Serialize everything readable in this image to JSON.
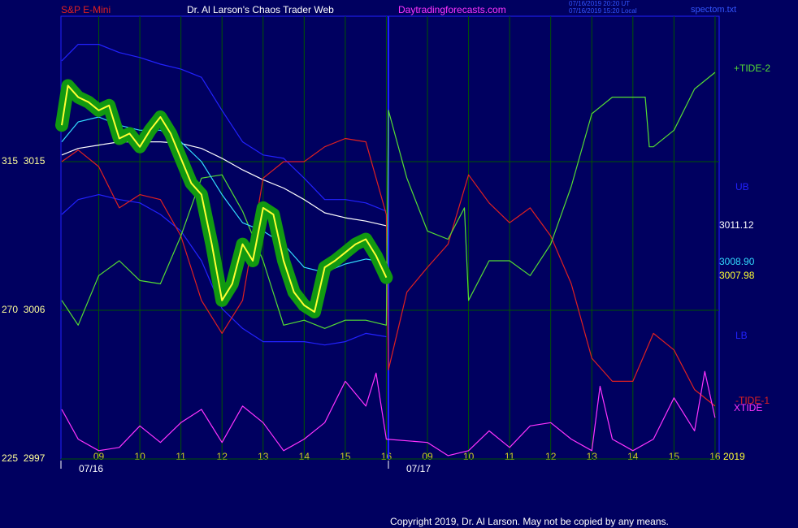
{
  "chart_data": {
    "type": "line",
    "header_left": "S&P E-Mini",
    "title": "Dr. Al Larson's Chaos Trader Web",
    "website": "Daytradingforecasts.com",
    "timestamps": [
      "07/16/2019 20:20 UT",
      "07/16/2019 15:20 Local"
    ],
    "file": "spectom.txt",
    "copyright": "Copyright 2019, Dr. Al Larson. May not be copied by any means.",
    "year": "2019",
    "xlim": [
      8.08,
      24.1
    ],
    "xticks": [
      {
        "value": 9,
        "label": "09"
      },
      10,
      11,
      12,
      13,
      14,
      15,
      16,
      {
        "value": 17,
        "label": "09"
      },
      {
        "value": 18,
        "label": "10"
      },
      {
        "value": 19,
        "label": "11"
      },
      {
        "value": 20,
        "label": "12"
      },
      {
        "value": 21,
        "label": "13"
      },
      {
        "value": 22,
        "label": "14"
      },
      {
        "value": 23,
        "label": "15"
      },
      {
        "value": 24,
        "label": "16"
      }
    ],
    "date_labels": [
      {
        "value": 8.08,
        "label": "07/16"
      },
      {
        "value": 16.05,
        "label": "07/17"
      }
    ],
    "day_separator": 16.05,
    "ylim": [
      2997,
      3023.8
    ],
    "yticks": [
      {
        "value": 2997,
        "label": "225  2997"
      },
      {
        "value": 3006,
        "label": "270  3006"
      },
      {
        "value": 3015,
        "label": "315  3015"
      }
    ],
    "grid": true,
    "series": [
      {
        "name": "UB",
        "color": "#2222ff",
        "x": [
          8.1,
          8.5,
          9,
          9.5,
          10,
          10.5,
          11,
          11.5,
          12,
          12.5,
          13,
          13.5,
          14,
          14.5,
          15,
          15.5,
          16
        ],
        "values": [
          3021.1,
          3022.1,
          3022.1,
          3021.6,
          3021.3,
          3020.9,
          3020.6,
          3020.1,
          3018.1,
          3016.2,
          3015.4,
          3015.2,
          3014.0,
          3012.7,
          3012.7,
          3012.5,
          3012.0
        ]
      },
      {
        "name": "LB",
        "color": "#2222ff",
        "x": [
          8.1,
          8.5,
          9,
          9.5,
          10,
          10.5,
          11,
          11.5,
          12,
          12.5,
          13,
          13.5,
          14,
          14.5,
          15,
          15.5,
          16
        ],
        "values": [
          3011.8,
          3012.7,
          3013.0,
          3012.7,
          3012.5,
          3011.8,
          3010.8,
          3009.0,
          3006.1,
          3004.9,
          3004.1,
          3004.1,
          3004.1,
          3003.9,
          3004.1,
          3004.6,
          3004.4
        ]
      },
      {
        "color": "#ffffff",
        "end_label": "3011.12",
        "x": [
          8.1,
          8.5,
          9,
          9.5,
          10,
          10.5,
          11,
          11.5,
          12,
          12.5,
          13,
          13.5,
          14,
          14.5,
          15,
          15.5,
          16
        ],
        "values": [
          3015.4,
          3015.8,
          3016.0,
          3016.2,
          3016.2,
          3016.2,
          3016.1,
          3015.8,
          3015.2,
          3014.5,
          3013.9,
          3013.4,
          3012.7,
          3011.9,
          3011.6,
          3011.4,
          3011.12
        ]
      },
      {
        "name": "-TIDE-1",
        "color": "#e02020",
        "x": [
          8.1,
          8.5,
          9,
          9.5,
          10,
          10.5,
          11,
          11.5,
          12,
          12.5,
          13,
          13.5,
          14,
          14.5,
          15,
          15.5,
          16,
          16.05,
          16.5,
          17,
          17.5,
          18,
          18.5,
          19,
          19.5,
          20,
          20.5,
          21,
          21.5,
          22,
          22.5,
          23,
          23.5,
          24
        ],
        "values": [
          3015.0,
          3015.7,
          3014.7,
          3012.2,
          3013.0,
          3012.7,
          3010.5,
          3006.6,
          3004.6,
          3006.6,
          3014.0,
          3015.0,
          3015.0,
          3015.9,
          3016.4,
          3016.2,
          3011.8,
          3002.4,
          3007.1,
          3008.6,
          3010.0,
          3014.2,
          3012.5,
          3011.3,
          3012.2,
          3010.5,
          3007.6,
          3003.1,
          3001.7,
          3001.7,
          3004.6,
          3003.6,
          3001.2,
          3000.2
        ]
      },
      {
        "name": "+TIDE-2",
        "color": "#55dd33",
        "x": [
          8.1,
          8.5,
          9,
          9.5,
          10,
          10.5,
          11,
          11.5,
          12,
          12.5,
          13,
          13.5,
          14,
          14.5,
          15,
          15.5,
          16,
          16.05,
          16.5,
          17,
          17.5,
          17.9,
          18,
          18.5,
          19,
          19.5,
          20,
          20.5,
          21,
          21.5,
          22,
          22.3,
          22.4,
          22.5,
          23,
          23.5,
          24
        ],
        "values": [
          3006.6,
          3005.1,
          3008.1,
          3009.0,
          3007.8,
          3007.6,
          3010.5,
          3014.0,
          3014.2,
          3012.0,
          3009.0,
          3005.1,
          3005.4,
          3004.9,
          3005.4,
          3005.4,
          3005.1,
          3018.1,
          3014.0,
          3010.8,
          3010.3,
          3012.2,
          3006.6,
          3009.0,
          3009.0,
          3008.1,
          3010.0,
          3013.5,
          3017.9,
          3018.9,
          3018.9,
          3018.9,
          3015.9,
          3015.9,
          3016.9,
          3019.4,
          3020.4
        ]
      },
      {
        "name": "XTIDE",
        "color": "#ff33ff",
        "x": [
          8.1,
          8.5,
          9,
          9.5,
          10,
          10.5,
          11,
          11.5,
          12,
          12.5,
          13,
          13.5,
          14,
          14.5,
          15,
          15.5,
          15.75,
          16,
          17,
          17.5,
          18,
          18.5,
          19,
          19.5,
          20,
          20.5,
          21,
          21.2,
          21.5,
          22,
          22.5,
          23,
          23.5,
          23.75,
          24
        ],
        "values": [
          3000.0,
          2998.2,
          2997.5,
          2997.7,
          2999.0,
          2998.0,
          2999.2,
          3000.0,
          2998.0,
          3000.2,
          2999.2,
          2997.5,
          2998.2,
          2999.2,
          3001.7,
          3000.2,
          3002.2,
          2998.2,
          2998.0,
          2997.2,
          2997.5,
          2998.7,
          2997.7,
          2999.0,
          2999.2,
          2998.2,
          2997.5,
          3001.4,
          2998.2,
          2997.5,
          2998.2,
          3000.7,
          2998.7,
          3002.3,
          2999.5
        ]
      },
      {
        "color": "#33ddff",
        "end_label": "3008.90",
        "x": [
          8.1,
          8.5,
          9,
          9.5,
          10,
          10.5,
          11,
          11.5,
          12,
          12.5,
          13,
          13.5,
          14,
          14.5,
          15,
          15.5,
          16
        ],
        "values": [
          3016.2,
          3017.4,
          3017.7,
          3017.2,
          3016.9,
          3016.9,
          3016.2,
          3015.0,
          3013.0,
          3011.3,
          3010.8,
          3010.0,
          3008.6,
          3008.3,
          3008.8,
          3009.1,
          3008.9
        ]
      },
      {
        "color": "#ffff33",
        "end_label": "3007.98",
        "glow": "#119911",
        "x": [
          8.1,
          8.25,
          8.5,
          8.75,
          9,
          9.25,
          9.5,
          9.75,
          10,
          10.25,
          10.5,
          10.75,
          11,
          11.25,
          11.5,
          11.75,
          12,
          12.25,
          12.5,
          12.75,
          13,
          13.25,
          13.5,
          13.75,
          14,
          14.25,
          14.5,
          14.75,
          15,
          15.25,
          15.5,
          15.75,
          16
        ],
        "values": [
          3017.2,
          3019.6,
          3018.9,
          3018.6,
          3018.1,
          3018.4,
          3016.4,
          3016.7,
          3015.9,
          3016.9,
          3017.7,
          3016.7,
          3015.2,
          3013.7,
          3013.0,
          3010.0,
          3006.6,
          3007.6,
          3010.0,
          3009.0,
          3012.2,
          3011.8,
          3009.0,
          3007.1,
          3006.3,
          3005.9,
          3008.6,
          3009.0,
          3009.5,
          3010.0,
          3010.3,
          3009.3,
          3007.98
        ]
      }
    ]
  }
}
